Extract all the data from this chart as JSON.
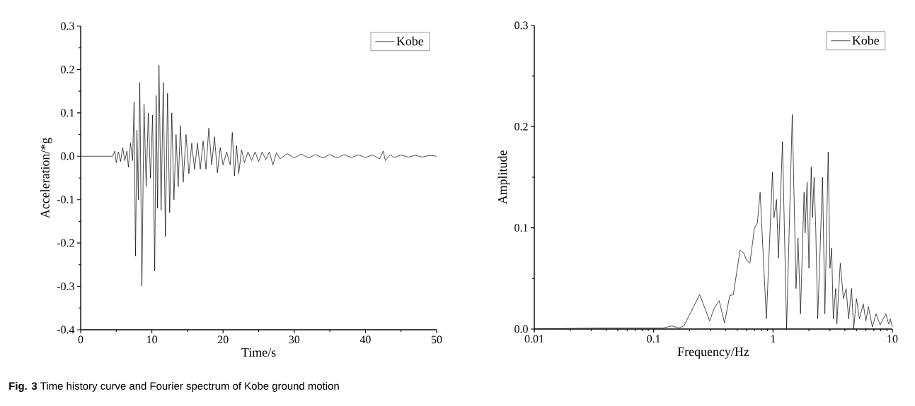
{
  "chart_data": [
    {
      "type": "line",
      "xlabel": "Time/s",
      "ylabel": "Acceleration/*g",
      "legend": "top right",
      "xlim": [
        0,
        50
      ],
      "ylim": [
        -0.4,
        0.3
      ],
      "xticks": [
        0,
        10,
        20,
        30,
        40,
        50
      ],
      "yticks": [
        {
          "value": -0.4,
          "label": "-0.4"
        },
        {
          "value": -0.3,
          "label": "-0.3"
        },
        {
          "value": -0.2,
          "label": "-0.2"
        },
        {
          "value": -0.1,
          "label": "-0.1"
        },
        {
          "value": 0,
          "label": "0.0"
        },
        {
          "value": 0.1,
          "label": "0.1"
        },
        {
          "value": 0.2,
          "label": "0.2"
        },
        {
          "value": 0.3,
          "label": "0.3"
        }
      ],
      "annotations": [
        "**Fig. 3** Time history curve and Fourier spectrum of Kobe ground motion"
      ],
      "series": [
        {
          "name": "Kobe",
          "color": "#000000",
          "x": [
            0,
            4.5,
            4.8,
            5,
            5.3,
            5.6,
            5.9,
            6.2,
            6.5,
            6.7,
            7,
            7.3,
            7.5,
            7.7,
            7.9,
            8.1,
            8.3,
            8.6,
            8.9,
            9.2,
            9.5,
            9.8,
            10.1,
            10.4,
            10.6,
            10.8,
            11,
            11.3,
            11.6,
            11.9,
            12.2,
            12.5,
            12.8,
            13.1,
            13.4,
            13.7,
            14,
            14.4,
            14.8,
            15.2,
            15.6,
            16,
            16.4,
            16.8,
            17.2,
            17.6,
            18,
            18.4,
            18.8,
            19.2,
            19.6,
            20,
            20.5,
            21,
            21.3,
            21.6,
            21.9,
            22.2,
            22.6,
            23,
            23.5,
            24,
            24.5,
            25,
            25.5,
            26,
            26.5,
            27,
            27.5,
            28,
            29,
            30,
            31,
            32,
            33,
            34,
            35,
            36,
            37,
            38,
            39,
            40,
            41,
            42,
            42.5,
            42.8,
            43.5,
            44,
            45,
            46,
            47,
            48,
            49,
            50
          ],
          "values": [
            0,
            0,
            0.012,
            -0.015,
            0.01,
            -0.012,
            0.02,
            -0.01,
            0.012,
            -0.025,
            0.03,
            -0.01,
            0.125,
            -0.23,
            0.06,
            -0.1,
            0.17,
            -0.3,
            0.12,
            -0.07,
            0.1,
            -0.05,
            0.095,
            -0.265,
            0.14,
            -0.12,
            0.21,
            -0.125,
            0.17,
            -0.185,
            0.145,
            -0.13,
            0.1,
            -0.1,
            0.05,
            -0.07,
            0.07,
            -0.06,
            0.05,
            -0.04,
            0.03,
            -0.03,
            0.03,
            -0.03,
            0.035,
            -0.03,
            0.065,
            -0.02,
            0.045,
            -0.038,
            0.02,
            -0.02,
            0.01,
            -0.02,
            0.055,
            -0.045,
            0.025,
            -0.04,
            0.015,
            -0.015,
            0.01,
            -0.01,
            0.01,
            -0.012,
            0.01,
            -0.008,
            0.01,
            -0.02,
            0.008,
            -0.006,
            0.006,
            -0.004,
            0.005,
            -0.004,
            0.004,
            -0.004,
            0.004,
            -0.004,
            0.004,
            -0.003,
            0.003,
            -0.003,
            0.003,
            -0.006,
            0.012,
            -0.01,
            0.004,
            -0.003,
            0.003,
            -0.002,
            0.002,
            -0.002,
            0.002,
            0
          ]
        }
      ]
    },
    {
      "type": "line",
      "xlabel": "Frequency/Hz",
      "ylabel": "Amplitude",
      "legend": "top right",
      "log": "x",
      "xlim": [
        0.01,
        10
      ],
      "ylim": [
        0,
        0.3
      ],
      "xticks": [
        0.01,
        0.1,
        1,
        10
      ],
      "yticks": [
        {
          "value": 0,
          "label": "0.0"
        },
        {
          "value": 0.1,
          "label": "0.1"
        },
        {
          "value": 0.2,
          "label": "0.2"
        },
        {
          "value": 0.3,
          "label": "0.3"
        }
      ],
      "series": [
        {
          "name": "Kobe",
          "color": "#000000",
          "x": [
            0.01,
            0.0337,
            0.1,
            0.119,
            0.143,
            0.162,
            0.179,
            0.243,
            0.295,
            0.32,
            0.354,
            0.393,
            0.434,
            0.465,
            0.53,
            0.57,
            0.6,
            0.64,
            0.7,
            0.74,
            0.78,
            0.88,
            0.99,
            1.02,
            1.07,
            1.11,
            1.2,
            1.3,
            1.45,
            1.56,
            1.62,
            1.7,
            1.82,
            1.86,
            1.93,
            2.0,
            2.09,
            2.14,
            2.21,
            2.28,
            2.37,
            2.6,
            2.72,
            2.9,
            3.0,
            3.1,
            3.2,
            3.35,
            3.43,
            3.66,
            3.89,
            4.1,
            4.3,
            4.55,
            4.74,
            5.0,
            5.3,
            5.7,
            6.0,
            6.3,
            6.8,
            7.3,
            7.9,
            8.8,
            9.3,
            9.6,
            10
          ],
          "values": [
            0,
            0.001,
            0.001,
            0.001,
            0.003,
            0.001,
            0.003,
            0.034,
            0.008,
            0.02,
            0.028,
            0.006,
            0.033,
            0.034,
            0.078,
            0.075,
            0.068,
            0.065,
            0.1,
            0.105,
            0.135,
            0.01,
            0.155,
            0.11,
            0.128,
            0.07,
            0.185,
            0.0,
            0.212,
            0.04,
            0.09,
            0.015,
            0.135,
            0.095,
            0.145,
            0.06,
            0.16,
            0.11,
            0.15,
            0.1,
            0.01,
            0.15,
            0.015,
            0.175,
            0.06,
            0.08,
            0.01,
            0.04,
            0.005,
            0.065,
            0.03,
            0.04,
            0.01,
            0.04,
            0.0,
            0.03,
            0.01,
            0.025,
            0.008,
            0.022,
            0.002,
            0.015,
            0.004,
            0.015,
            0.005,
            0.01,
            0.002
          ]
        }
      ]
    }
  ]
}
